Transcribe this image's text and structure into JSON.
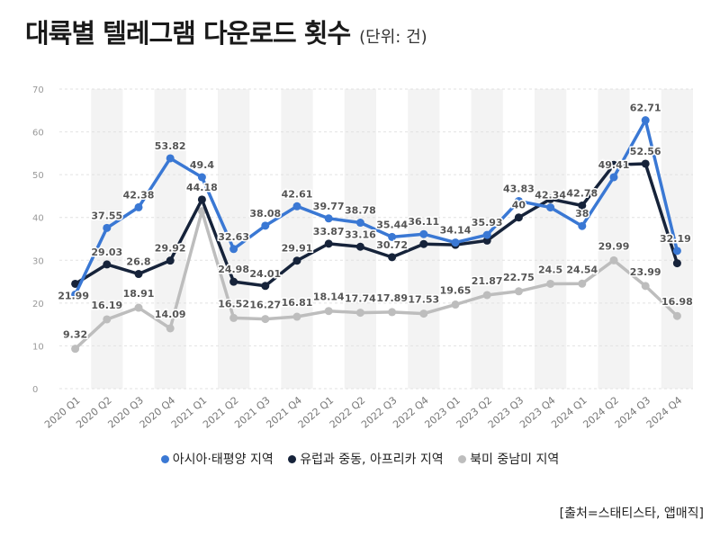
{
  "title": "대륙별 텔레그램 다운로드 횟수",
  "unit": "(단위: 건)",
  "source": "[출처=스태티스타, 앱매직]",
  "chart_data": {
    "type": "line",
    "title": "대륙별 텔레그램 다운로드 횟수",
    "xlabel": "",
    "ylabel": "",
    "ylim": [
      0,
      70
    ],
    "yticks": [
      "0",
      "10",
      "20",
      "30",
      "40",
      "50",
      "60",
      "70"
    ],
    "categories": [
      "2020 Q1",
      "2020 Q2",
      "2020 Q3",
      "2020 Q4",
      "2021 Q1",
      "2021 Q2",
      "2021 Q3",
      "2021 Q4",
      "2022 Q1",
      "2022 Q2",
      "2022 Q3",
      "2022 Q4",
      "2023 Q1",
      "2023 Q2",
      "2023 Q3",
      "2023 Q4",
      "2024 Q1",
      "2024 Q2",
      "2024 Q3",
      "2024 Q4"
    ],
    "series": [
      {
        "name": "아시아·태평양 지역",
        "color": "#3a78d4",
        "values": [
          21.99,
          37.55,
          42.38,
          53.82,
          49.4,
          32.63,
          38.08,
          42.61,
          39.77,
          38.78,
          35.44,
          36.11,
          34.14,
          35.93,
          43.83,
          42.34,
          38,
          49.41,
          62.71,
          32.19
        ],
        "labels": [
          "21.99",
          "37.55",
          "42.38",
          "53.82",
          "49.4",
          "32.63",
          "38.08",
          "42.61",
          "39.77",
          "38.78",
          "35.44",
          "36.11",
          "34.14",
          "35.93",
          "43.83",
          "42.34",
          "38",
          "49.41",
          "62.71",
          "32.19"
        ]
      },
      {
        "name": "유럽과 중동, 아프리카 지역",
        "color": "#16233a",
        "values": [
          24.5,
          29.03,
          26.8,
          29.92,
          44.18,
          24.98,
          24.01,
          29.91,
          33.87,
          33.16,
          30.72,
          33.8,
          33.6,
          34.6,
          40,
          44.3,
          42.78,
          52.3,
          52.56,
          29.3
        ],
        "labels": [
          "",
          "29.03",
          "26.8",
          "29.92",
          "44.18",
          "24.98",
          "24.01",
          "29.91",
          "33.87",
          "33.16",
          "30.72",
          "",
          "",
          "",
          "40",
          "",
          "42.78",
          "",
          "52.56",
          ""
        ]
      },
      {
        "name": "북미 중남미 지역",
        "color": "#bdbdbd",
        "values": [
          9.32,
          16.19,
          18.91,
          14.09,
          41.5,
          16.52,
          16.27,
          16.81,
          18.14,
          17.74,
          17.89,
          17.53,
          19.65,
          21.87,
          22.75,
          24.5,
          24.54,
          29.99,
          23.99,
          16.98
        ],
        "labels": [
          "9.32",
          "16.19",
          "18.91",
          "14.09",
          "",
          "16.52",
          "16.27",
          "16.81",
          "18.14",
          "17.74",
          "17.89",
          "17.53",
          "19.65",
          "21.87",
          "22.75",
          "24.5",
          "24.54",
          "29.99",
          "23.99",
          "16.98"
        ]
      }
    ],
    "grid": true,
    "legend_position": "bottom"
  }
}
